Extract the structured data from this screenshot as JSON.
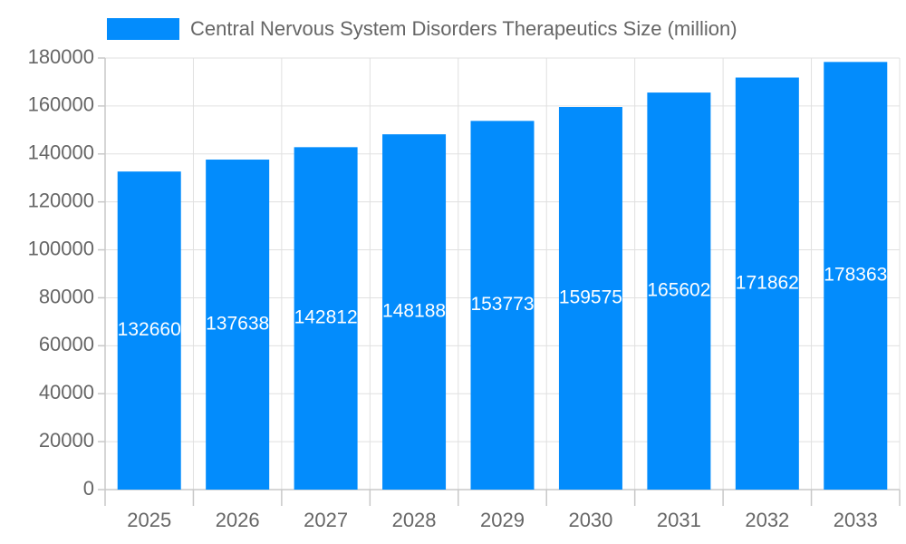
{
  "chart_data": {
    "type": "bar",
    "categories": [
      "2025",
      "2026",
      "2027",
      "2028",
      "2029",
      "2030",
      "2031",
      "2032",
      "2033"
    ],
    "series": [
      {
        "name": "Central Nervous System Disorders Therapeutics Size (million)",
        "color": "#038cfc",
        "values": [
          132660,
          137638,
          142812,
          148188,
          153773,
          159575,
          165602,
          171862,
          178363
        ]
      }
    ],
    "ylim": [
      0,
      180000
    ],
    "yticks": [
      0,
      20000,
      40000,
      60000,
      80000,
      100000,
      120000,
      140000,
      160000,
      180000
    ],
    "grid": true,
    "legend": "top"
  }
}
